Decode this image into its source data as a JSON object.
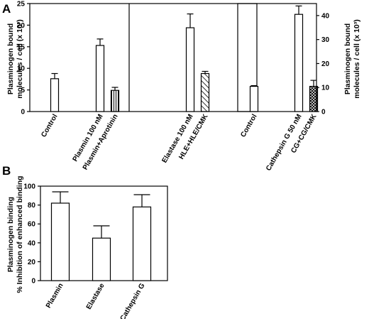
{
  "panel_a_letter": "A",
  "panel_b_letter": "B",
  "chart_data": [
    {
      "type": "bar",
      "panel": "A",
      "ylabel": [
        "Plasminogen bound",
        "molecules / cell (x 10³)"
      ],
      "ylim": [
        0,
        25
      ],
      "yticks": [
        0,
        5,
        10,
        15,
        20,
        25
      ],
      "categories": [
        "Control",
        "Plasmin 100 nM",
        "Plasmin+Aprotinin",
        "Elastase 100 nM",
        "HLE+HLE/CMK"
      ],
      "values": [
        7.6,
        15.3,
        4.9,
        19.4,
        8.8
      ],
      "errors": [
        1.2,
        1.5,
        0.7,
        3.2,
        0.5
      ],
      "fills": [
        "open",
        "open",
        "vertical-lines",
        "open",
        "diagonal-hatch"
      ]
    },
    {
      "type": "bar",
      "panel": "A",
      "ylabel": [
        "Plasminogen bound",
        "molecules / cell (x 10³)"
      ],
      "ylim": [
        0,
        45
      ],
      "yticks": [
        0,
        10,
        20,
        30,
        40
      ],
      "categories": [
        "Control",
        "Cathepsin G 50 nM",
        "CG+CG/CMK"
      ],
      "values": [
        10.5,
        40.5,
        10.5
      ],
      "errors": [
        0.3,
        3.5,
        2.5
      ],
      "fills": [
        "open",
        "open",
        "cross-hatch"
      ]
    },
    {
      "type": "bar",
      "panel": "B",
      "ylabel": [
        "Plasminogen binding",
        "% Inhibition of enhanced binding"
      ],
      "ylim": [
        0,
        100
      ],
      "yticks": [
        0,
        20,
        40,
        60,
        80,
        100
      ],
      "categories": [
        "Plasmin",
        "Elastase",
        "Cathepsin G"
      ],
      "values": [
        82,
        45,
        78
      ],
      "errors": [
        12,
        13,
        13
      ],
      "fills": [
        "open",
        "open",
        "open"
      ]
    }
  ]
}
